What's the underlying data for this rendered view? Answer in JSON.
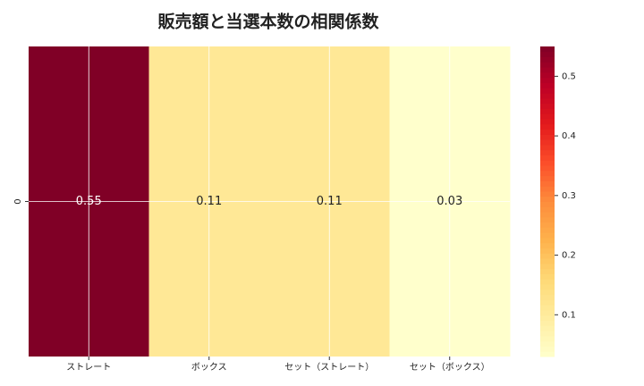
{
  "chart_data": {
    "type": "heatmap",
    "title": "販売額と当選本数の相関係数",
    "categories": [
      "ストレート",
      "ボックス",
      "セット（ストレート）",
      "セット（ボックス）"
    ],
    "rows": [
      "0"
    ],
    "values": [
      0.55,
      0.11,
      0.11,
      0.03
    ],
    "colors": [
      "#ffffcc",
      "#ffeda0",
      "#fed976",
      "#feb24c",
      "#fd8d3c",
      "#fc4e2a",
      "#e31a1c",
      "#bd0026",
      "#800026"
    ],
    "clim": [
      0.03,
      0.55
    ],
    "cticks": [
      0.1,
      0.2,
      0.3,
      0.4,
      0.5
    ],
    "grid": true
  }
}
